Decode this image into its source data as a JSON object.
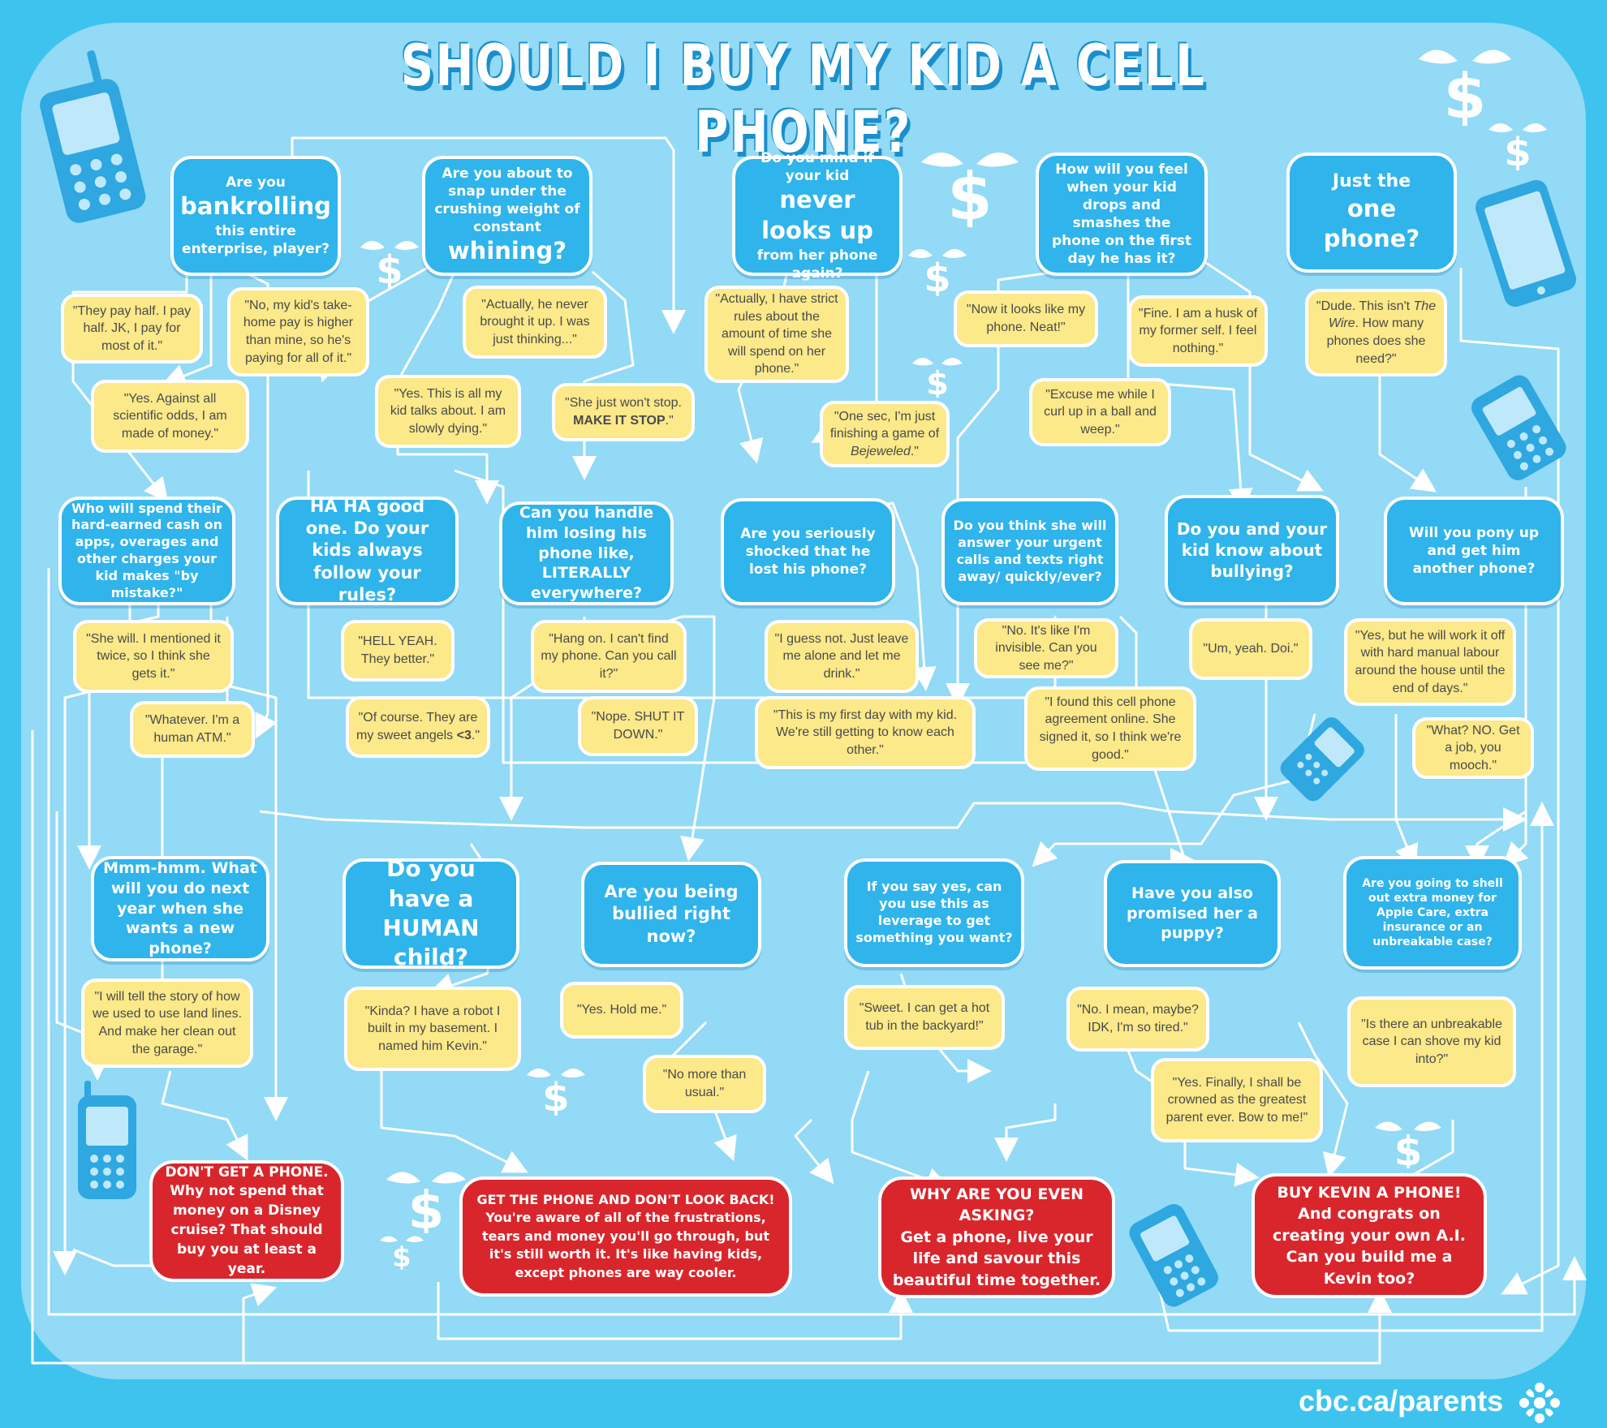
{
  "title": "SHOULD I BUY MY KID A CELL PHONE?",
  "questions": {
    "bankrolling": {
      "pre": "Are you",
      "emph": "bankrolling",
      "post": "this entire enterprise, player?"
    },
    "whining": {
      "pre": "Are you about to snap under the crushing weight of constant",
      "emph": "whining?"
    },
    "never_looks_up": {
      "pre": "Do you mind if your kid",
      "emph": "never looks up",
      "post": "from her phone again?"
    },
    "smashes": "How will you feel when your kid drops and smashes the phone on the first day he has it?",
    "one_phone": {
      "pre": "Just the",
      "emph": "one phone?"
    },
    "charges": "Who will spend their hard-earned cash on apps, overages and other charges your kid makes \"by mistake?\"",
    "rules": "HA HA good one. Do your kids always follow your rules?",
    "losing": "Can you handle him losing his phone like, LITERALLY everywhere?",
    "shocked": "Are you seriously shocked that he lost his phone?",
    "urgent": "Do you think she will answer your urgent calls and texts right away/ quickly/ever?",
    "bullying": "Do you and your kid know about bullying?",
    "pony_up": "Will you pony up and get him another phone?",
    "next_year": "Mmm-hmm. What will you do next year when she wants a new phone?",
    "human_child": "Do you have a HUMAN child?",
    "bullied": "Are you being bullied right now?",
    "leverage": "If you say yes, can you use this as leverage to get something you want?",
    "puppy": "Have you also promised her a puppy?",
    "apple_care": "Are you going to shell out extra money for Apple Care, extra insurance or an unbreakable case?"
  },
  "answers": {
    "pay_half": "\"They pay half. I pay half. JK, I pay for most of it.\"",
    "take_home": "\"No, my kid's take-home pay is higher than mine, so he's paying for all of it.\"",
    "made_of_money": "\"Yes. Against all scientific odds, I am made of money.\"",
    "never_brought": "\"Actually, he never brought it up. I was just thinking...\"",
    "slowly_dying": "\"Yes. This is all my kid talks about. I am slowly dying.\"",
    "make_it_stop": {
      "pre": "\"She just won't stop.",
      "emph": "MAKE IT STOP",
      "post": ".\""
    },
    "strict_rules": "\"Actually, I have strict rules about the amount of time she will spend on her phone.\"",
    "bejeweled": {
      "pre": "\"One sec, I'm just finishing a game of",
      "emph": "Bejeweled",
      "post": ".\""
    },
    "neat": "\"Now it looks like my phone. Neat!\"",
    "husk": "\"Fine. I am a husk of my former self. I feel nothing.\"",
    "curl_up": "\"Excuse me while I curl up in a ball and weep.\"",
    "the_wire": {
      "pre": "\"Dude. This isn't",
      "emph": "The Wire",
      "post": ". How many phones does she need?\""
    },
    "mentioned_twice": "\"She will. I mentioned it twice, so I think she gets it.\"",
    "human_atm": "\"Whatever. I'm a human ATM.\"",
    "hell_yeah": "\"HELL YEAH. They better.\"",
    "sweet_angels": {
      "pre": "\"Of course. They are my sweet angels",
      "emph": "<3",
      "post": ".\""
    },
    "call_it": "\"Hang on. I can't find my phone. Can you call it?\"",
    "shut_down": "\"Nope. SHUT IT DOWN.\"",
    "leave_me": "\"I guess not. Just leave me alone and let me drink.\"",
    "first_day": "\"This is my first day with my kid. We're still getting to know each other.\"",
    "invisible": "\"No. It's like I'm invisible. Can you see me?\"",
    "agreement": "\"I found this cell phone agreement online. She signed it, so I think we're good.\"",
    "doi": "\"Um, yeah. Doi.\"",
    "manual_labour": "\"Yes, but he will work it off with hard manual labour around the house until the end of days.\"",
    "mooch": "\"What? NO. Get a job, you mooch.\"",
    "land_lines": "\"I will tell the story of how we used to use land lines. And make her clean out the garage.\"",
    "robot": "\"Kinda? I have a robot I built in my basement. I named him Kevin.\"",
    "hold_me": "\"Yes. Hold me.\"",
    "no_more": "\"No more than usual.\"",
    "hot_tub": "\"Sweet. I can get a hot tub in the backyard!\"",
    "so_tired": "\"No. I mean, maybe? IDK, I'm so tired.\"",
    "greatest_parent": "\"Yes. Finally, I shall be crowned as the greatest parent ever. Bow to me!\"",
    "unbreakable": "\"Is there an unbreakable case I can shove my kid into?\""
  },
  "results": {
    "dont_get": {
      "head": "DON'T GET A PHONE.",
      "body": "Why not spend that money on a Disney cruise? That should buy you at least a year."
    },
    "get_phone": {
      "head": "GET THE PHONE AND DON'T LOOK BACK!",
      "body": "You're aware of all of the frustrations, tears and money you'll go through, but it's still worth it. It's like having kids, except phones are way cooler."
    },
    "why_asking": {
      "head": "WHY ARE YOU EVEN ASKING?",
      "body": "Get a phone, live your life and savour this beautiful time together."
    },
    "buy_kevin": {
      "head": "BUY KEVIN A PHONE!",
      "body": "And congrats on creating your own A.I. Can you build me a Kevin too?"
    }
  },
  "footer": {
    "url": "cbc.ca/parents",
    "logo_icon": "cbc-gem-icon"
  },
  "decorations": [
    "cell-phone-icon",
    "smartphone-icon",
    "flying-dollar-icon"
  ],
  "colors": {
    "background": "#3ec3ee",
    "board": "#92daf6",
    "question": "#2fb4ec",
    "answer": "#fbe98a",
    "result": "#d9262c",
    "lines": "#ffffff"
  }
}
